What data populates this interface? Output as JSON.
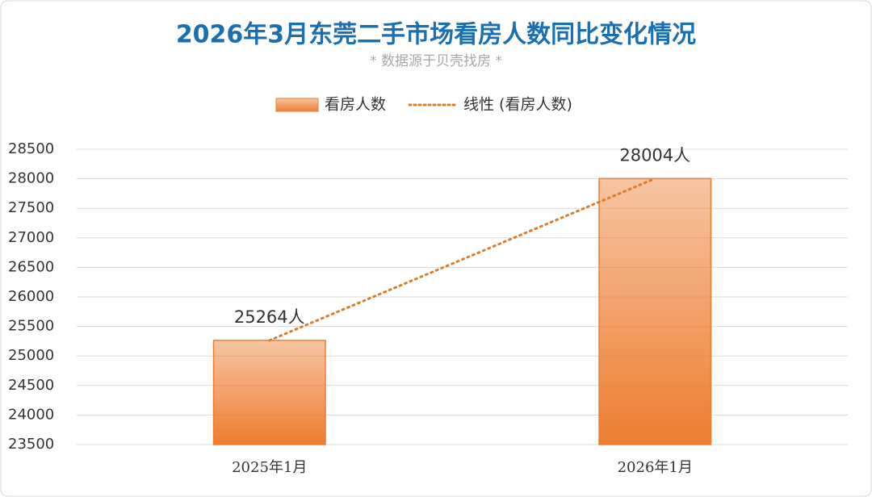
{
  "chart_data": {
    "type": "bar",
    "title": "2026年3月东莞二手市场看房人数同比变化情况",
    "subtitle": "* 数据源于贝壳找房 *",
    "categories": [
      "2025年1月",
      "2026年1月"
    ],
    "series": [
      {
        "name": "看房人数",
        "color": "#ed7d31",
        "values": [
          25264,
          28004
        ],
        "value_labels": [
          "25264人",
          "28004人"
        ]
      }
    ],
    "trendline": {
      "name": "线性 (看房人数)",
      "color": "#e07b28",
      "style": "dotted"
    },
    "ylim": [
      23500,
      28500
    ],
    "yticks": [
      23500,
      24000,
      24500,
      25000,
      25500,
      26000,
      26500,
      27000,
      27500,
      28000,
      28500
    ],
    "grid": true,
    "legend": "top"
  }
}
